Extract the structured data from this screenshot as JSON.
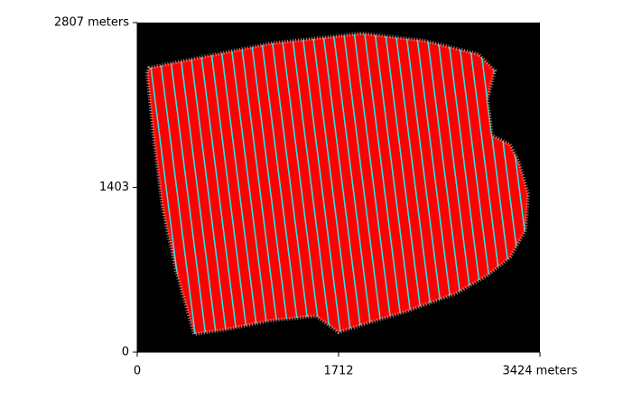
{
  "chart_data": {
    "type": "track-map",
    "xlim": [
      0,
      3424
    ],
    "ylim": [
      0,
      2807
    ],
    "xticks": [
      0,
      1712,
      {
        "value": 3424,
        "label": "3424 meters"
      }
    ],
    "yticks": [
      0,
      1403,
      {
        "value": 2807,
        "label": "2807 meters"
      }
    ],
    "background": "#000000",
    "boundary": {
      "color": "#b8b0a0",
      "x": [
        100,
        1136,
        1904,
        2441,
        2902,
        3040,
        2979,
        3017,
        3171,
        3247,
        3324,
        3301,
        3171,
        2979,
        2710,
        2288,
        1904,
        1712,
        1520,
        1136,
        752,
        484,
        330,
        215,
        138,
        84
      ],
      "y": [
        2422,
        2630,
        2715,
        2653,
        2538,
        2399,
        2153,
        1845,
        1769,
        1615,
        1346,
        1038,
        807,
        654,
        500,
        346,
        231,
        169,
        308,
        269,
        192,
        154,
        692,
        1230,
        1846,
        2384
      ]
    },
    "track_colors": [
      "#ff0000",
      "#33e0e0"
    ]
  }
}
